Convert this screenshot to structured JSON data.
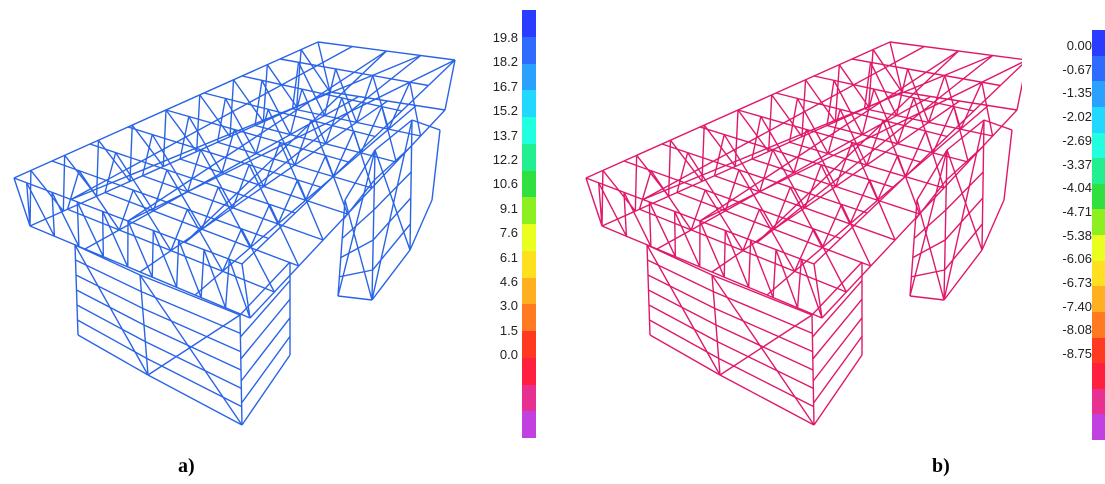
{
  "panels": [
    {
      "label": "a)",
      "frame_color": "#2a64e6",
      "scale_ticks": [
        "19.8",
        "18.2",
        "16.7",
        "15.2",
        "13.7",
        "12.2",
        "10.6",
        "9.1",
        "7.6",
        "6.1",
        "4.6",
        "3.0",
        "1.5",
        "0.0"
      ]
    },
    {
      "label": "b)",
      "frame_color": "#e0186a",
      "scale_ticks": [
        "0.00",
        "-0.67",
        "-1.35",
        "-2.02",
        "-2.69",
        "-3.37",
        "-4.04",
        "-4.71",
        "-5.38",
        "-6.06",
        "-6.73",
        "-7.40",
        "-8.08",
        "-8.75"
      ]
    }
  ],
  "colorbar_colors": [
    "#2a3cff",
    "#2f6bff",
    "#2aa0ff",
    "#22d8ff",
    "#22ffe0",
    "#22f090",
    "#30e040",
    "#8cf020",
    "#e8ff20",
    "#ffe020",
    "#ffb020",
    "#ff7a20",
    "#ff3a20",
    "#ff2040",
    "#e83090",
    "#c040e0"
  ]
}
